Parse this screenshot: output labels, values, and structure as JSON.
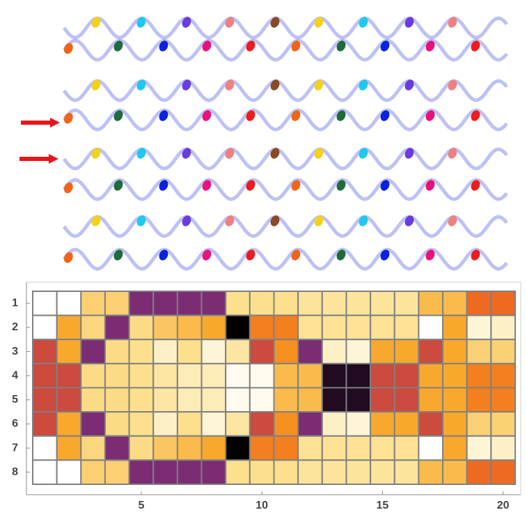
{
  "chart_data": {
    "type": "heatmap",
    "xlim": [
      0.5,
      20.5
    ],
    "xticks": [
      5,
      10,
      15,
      20
    ],
    "ylim": [
      8.5,
      0.5
    ],
    "yticks": [
      1,
      2,
      3,
      4,
      5,
      6,
      7,
      8
    ],
    "colorscale": [
      [
        0,
        "#000000"
      ],
      [
        0.08,
        "#2a0f2c"
      ],
      [
        0.2,
        "#7b2c73"
      ],
      [
        0.35,
        "#cc4a3e"
      ],
      [
        0.47,
        "#ee6a23"
      ],
      [
        0.55,
        "#f5861c"
      ],
      [
        0.62,
        "#f9a82e"
      ],
      [
        0.68,
        "#fbbb4c"
      ],
      [
        0.75,
        "#fbcf72"
      ],
      [
        0.82,
        "#fde08e"
      ],
      [
        0.9,
        "#fdf0c6"
      ],
      [
        1,
        "#ffffff"
      ]
    ],
    "values": [
      [
        1,
        1,
        0.75,
        0.75,
        0.2,
        0.2,
        0.2,
        0.2,
        0.82,
        0.82,
        0.82,
        0.84,
        0.84,
        0.84,
        0.84,
        0.84,
        0.68,
        0.68,
        0.47,
        0.47
      ],
      [
        1,
        0.62,
        0.78,
        0.2,
        0.8,
        0.72,
        0.68,
        0.62,
        0,
        0.53,
        0.53,
        0.83,
        0.83,
        0.83,
        0.83,
        0.83,
        1,
        0.62,
        0.93,
        0.9
      ],
      [
        0.35,
        0.62,
        0.2,
        0.8,
        0.82,
        0.9,
        0.82,
        0.93,
        0.85,
        0.35,
        0.57,
        0.2,
        0.9,
        0.93,
        0.62,
        0.62,
        0.35,
        0.62,
        0.76,
        0.76
      ],
      [
        0.35,
        0.35,
        0.8,
        0.8,
        0.82,
        0.85,
        0.88,
        0.88,
        0.97,
        0.97,
        0.68,
        0.68,
        0.06,
        0.06,
        0.35,
        0.35,
        0.62,
        0.62,
        0.53,
        0.53
      ],
      [
        0.35,
        0.35,
        0.8,
        0.8,
        0.82,
        0.85,
        0.88,
        0.88,
        0.97,
        0.97,
        0.68,
        0.68,
        0.06,
        0.06,
        0.35,
        0.35,
        0.62,
        0.62,
        0.53,
        0.53
      ],
      [
        0.35,
        0.62,
        0.2,
        0.8,
        0.82,
        0.9,
        0.82,
        0.93,
        0.85,
        0.35,
        0.57,
        0.2,
        0.9,
        0.93,
        0.62,
        0.62,
        0.35,
        0.62,
        0.76,
        0.76
      ],
      [
        1,
        0.62,
        0.78,
        0.2,
        0.8,
        0.72,
        0.68,
        0.62,
        0,
        0.53,
        0.53,
        0.83,
        0.83,
        0.83,
        0.83,
        0.83,
        1,
        0.62,
        0.93,
        0.9
      ],
      [
        1,
        1,
        0.75,
        0.75,
        0.2,
        0.2,
        0.2,
        0.2,
        0.82,
        0.82,
        0.82,
        0.84,
        0.84,
        0.84,
        0.84,
        0.84,
        0.68,
        0.68,
        0.47,
        0.47
      ]
    ],
    "cell_border": "#808080"
  }
}
